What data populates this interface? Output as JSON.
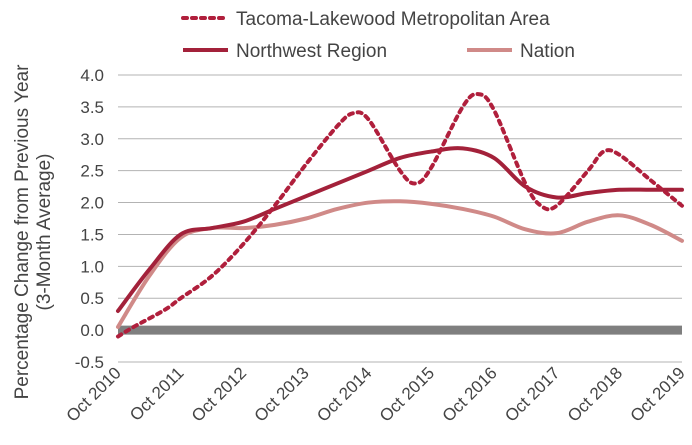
{
  "chart_data": {
    "type": "line",
    "title": "",
    "ylabel": "Percentage Change from Previous Year",
    "ylabel_sub": "(3-Month Average)",
    "xlabel": "",
    "ylim": [
      -0.5,
      4.0
    ],
    "yticks": [
      -0.5,
      0.0,
      0.5,
      1.0,
      1.5,
      2.0,
      2.5,
      3.0,
      3.5,
      4.0
    ],
    "ytick_labels": [
      "-0.5",
      "0.0",
      "0.5",
      "1.0",
      "1.5",
      "2.0",
      "2.5",
      "3.0",
      "3.5",
      "4.0"
    ],
    "xtick_labels": [
      "Oct 2010",
      "Oct 2011",
      "Oct 2012",
      "Oct 2013",
      "Oct 2014",
      "Oct 2015",
      "Oct 2016",
      "Oct 2017",
      "Oct 2018",
      "Oct 2019"
    ],
    "grid": "horizontal",
    "legend_position": "top",
    "zero_line_color": "#7f7f7f",
    "series": [
      {
        "name": "Tacoma-Lakewood Metropolitan Area",
        "style": "dotted",
        "color": "#b01f3c",
        "points": [
          [
            2010.75,
            -0.1
          ],
          [
            2011.0,
            0.05
          ],
          [
            2011.5,
            0.32
          ],
          [
            2011.75,
            0.5
          ],
          [
            2012.25,
            0.85
          ],
          [
            2012.75,
            1.35
          ],
          [
            2013.25,
            1.95
          ],
          [
            2013.75,
            2.6
          ],
          [
            2014.25,
            3.2
          ],
          [
            2014.5,
            3.4
          ],
          [
            2014.75,
            3.3
          ],
          [
            2015.25,
            2.5
          ],
          [
            2015.5,
            2.3
          ],
          [
            2015.75,
            2.55
          ],
          [
            2016.25,
            3.5
          ],
          [
            2016.5,
            3.7
          ],
          [
            2016.75,
            3.45
          ],
          [
            2017.25,
            2.3
          ],
          [
            2017.5,
            1.95
          ],
          [
            2017.75,
            1.95
          ],
          [
            2018.25,
            2.5
          ],
          [
            2018.5,
            2.8
          ],
          [
            2018.75,
            2.75
          ],
          [
            2019.25,
            2.35
          ],
          [
            2019.75,
            1.95
          ]
        ]
      },
      {
        "name": "Northwest Region",
        "style": "solid",
        "color": "#a3213a",
        "points": [
          [
            2010.75,
            0.3
          ],
          [
            2011.25,
            0.95
          ],
          [
            2011.75,
            1.5
          ],
          [
            2012.25,
            1.6
          ],
          [
            2012.75,
            1.7
          ],
          [
            2013.25,
            1.9
          ],
          [
            2013.75,
            2.1
          ],
          [
            2014.25,
            2.3
          ],
          [
            2014.75,
            2.5
          ],
          [
            2015.25,
            2.7
          ],
          [
            2015.75,
            2.8
          ],
          [
            2016.25,
            2.85
          ],
          [
            2016.75,
            2.7
          ],
          [
            2017.25,
            2.25
          ],
          [
            2017.75,
            2.08
          ],
          [
            2018.25,
            2.15
          ],
          [
            2018.75,
            2.2
          ],
          [
            2019.25,
            2.2
          ],
          [
            2019.75,
            2.2
          ]
        ]
      },
      {
        "name": "Nation",
        "style": "solid",
        "color": "#d08a88",
        "points": [
          [
            2010.75,
            0.05
          ],
          [
            2011.25,
            0.85
          ],
          [
            2011.75,
            1.45
          ],
          [
            2012.25,
            1.6
          ],
          [
            2012.75,
            1.6
          ],
          [
            2013.25,
            1.65
          ],
          [
            2013.75,
            1.75
          ],
          [
            2014.25,
            1.9
          ],
          [
            2014.75,
            2.0
          ],
          [
            2015.25,
            2.02
          ],
          [
            2015.75,
            1.98
          ],
          [
            2016.25,
            1.9
          ],
          [
            2016.75,
            1.78
          ],
          [
            2017.25,
            1.58
          ],
          [
            2017.75,
            1.52
          ],
          [
            2018.25,
            1.7
          ],
          [
            2018.75,
            1.8
          ],
          [
            2019.25,
            1.65
          ],
          [
            2019.75,
            1.4
          ]
        ]
      }
    ]
  }
}
